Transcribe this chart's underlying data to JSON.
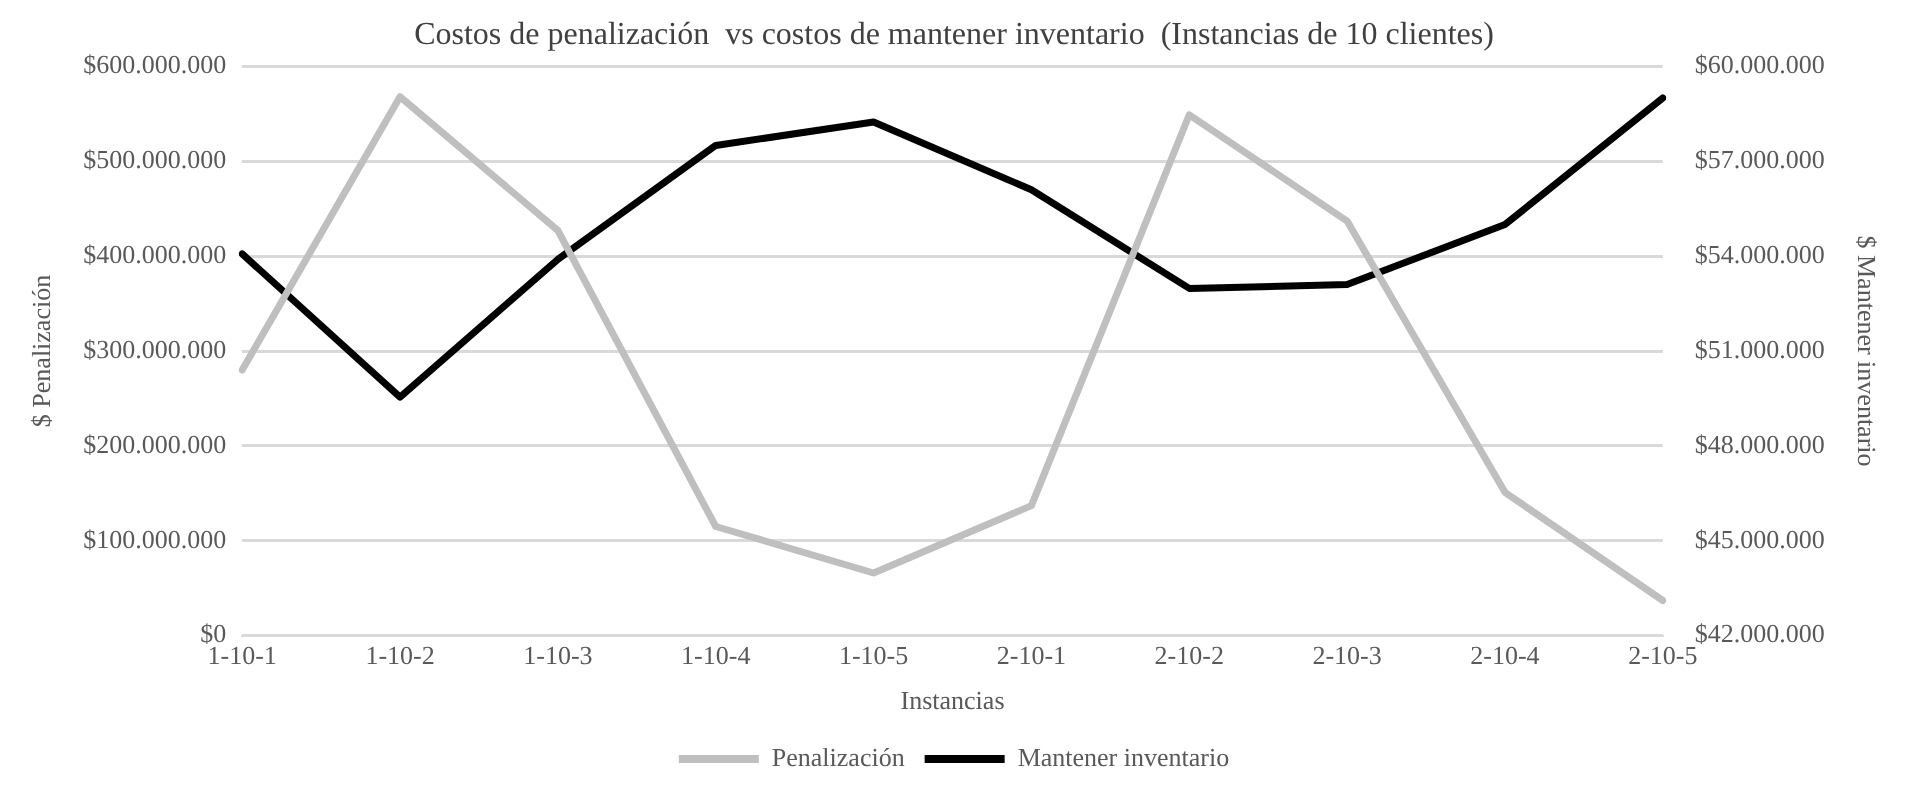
{
  "chart_data": {
    "type": "line",
    "title": "Costos de penalización  vs costos de mantener inventario  (Instancias de 10 clientes)",
    "xlabel": "Instancias",
    "ylabel": "$ Penalización",
    "y2label": "$ Mantener inventario",
    "categories": [
      "1-10-1",
      "1-10-2",
      "1-10-3",
      "1-10-4",
      "1-10-5",
      "2-10-1",
      "2-10-2",
      "2-10-3",
      "2-10-4",
      "2-10-5"
    ],
    "series": [
      {
        "name": "Penalización",
        "color": "#bfbfbf",
        "values": [
          280000000,
          568000000,
          427000000,
          115000000,
          66000000,
          137000000,
          549000000,
          437000000,
          151000000,
          37000000
        ]
      },
      {
        "name": "Mantener inventario",
        "color": "#000000",
        "axis": "y2",
        "values": [
          54070000,
          49540000,
          53900000,
          57500000,
          58240000,
          56100000,
          52980000,
          53100000,
          55000000,
          59000000
        ]
      }
    ],
    "ylim": [
      0,
      600000000
    ],
    "yticks": [
      {
        "value": 0,
        "label": "$0"
      },
      {
        "value": 100000000,
        "label": "$100.000.000"
      },
      {
        "value": 200000000,
        "label": "$200.000.000"
      },
      {
        "value": 300000000,
        "label": "$300.000.000"
      },
      {
        "value": 400000000,
        "label": "$400.000.000"
      },
      {
        "value": 500000000,
        "label": "$500.000.000"
      },
      {
        "value": 600000000,
        "label": "$600.000.000"
      }
    ],
    "y2lim": [
      42000000,
      60000000
    ],
    "y2ticks": [
      {
        "value": 42000000,
        "label": "$42.000.000"
      },
      {
        "value": 45000000,
        "label": "$45.000.000"
      },
      {
        "value": 48000000,
        "label": "$48.000.000"
      },
      {
        "value": 51000000,
        "label": "$51.000.000"
      },
      {
        "value": 54000000,
        "label": "$54.000.000"
      },
      {
        "value": 57000000,
        "label": "$57.000.000"
      },
      {
        "value": 60000000,
        "label": "$60.000.000"
      }
    ],
    "grid": "y",
    "legend": "bottom",
    "marker": "none",
    "line_style": "solid"
  }
}
